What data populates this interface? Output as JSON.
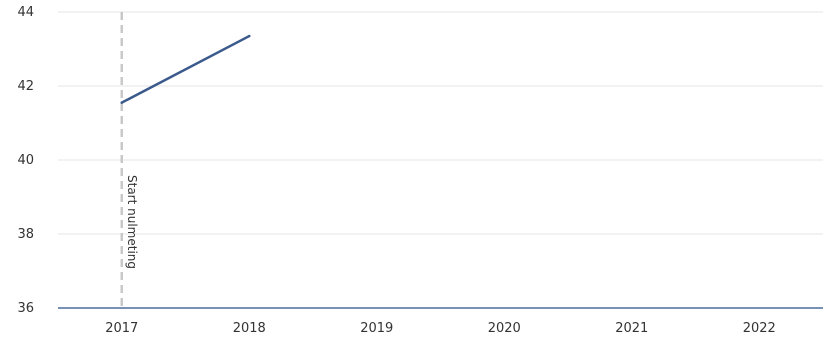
{
  "chart_data": {
    "type": "line",
    "x": [
      2017,
      2018,
      2019,
      2020,
      2021,
      2022
    ],
    "series": [
      {
        "values": [
          41.55,
          43.35,
          null,
          null,
          null,
          null
        ]
      }
    ],
    "xlim": [
      2016.5,
      2022.5
    ],
    "ylim": [
      36,
      44
    ],
    "yticks": [
      36,
      38,
      40,
      42,
      44
    ],
    "grid": "horizontal",
    "annotation": {
      "x": 2017,
      "text": "Start nulmeting"
    },
    "colors": {
      "series": "#3b5a8c",
      "axis": "#4a6d9b",
      "grid": "#e6e6e6",
      "marker": "#c8c8c8"
    }
  }
}
